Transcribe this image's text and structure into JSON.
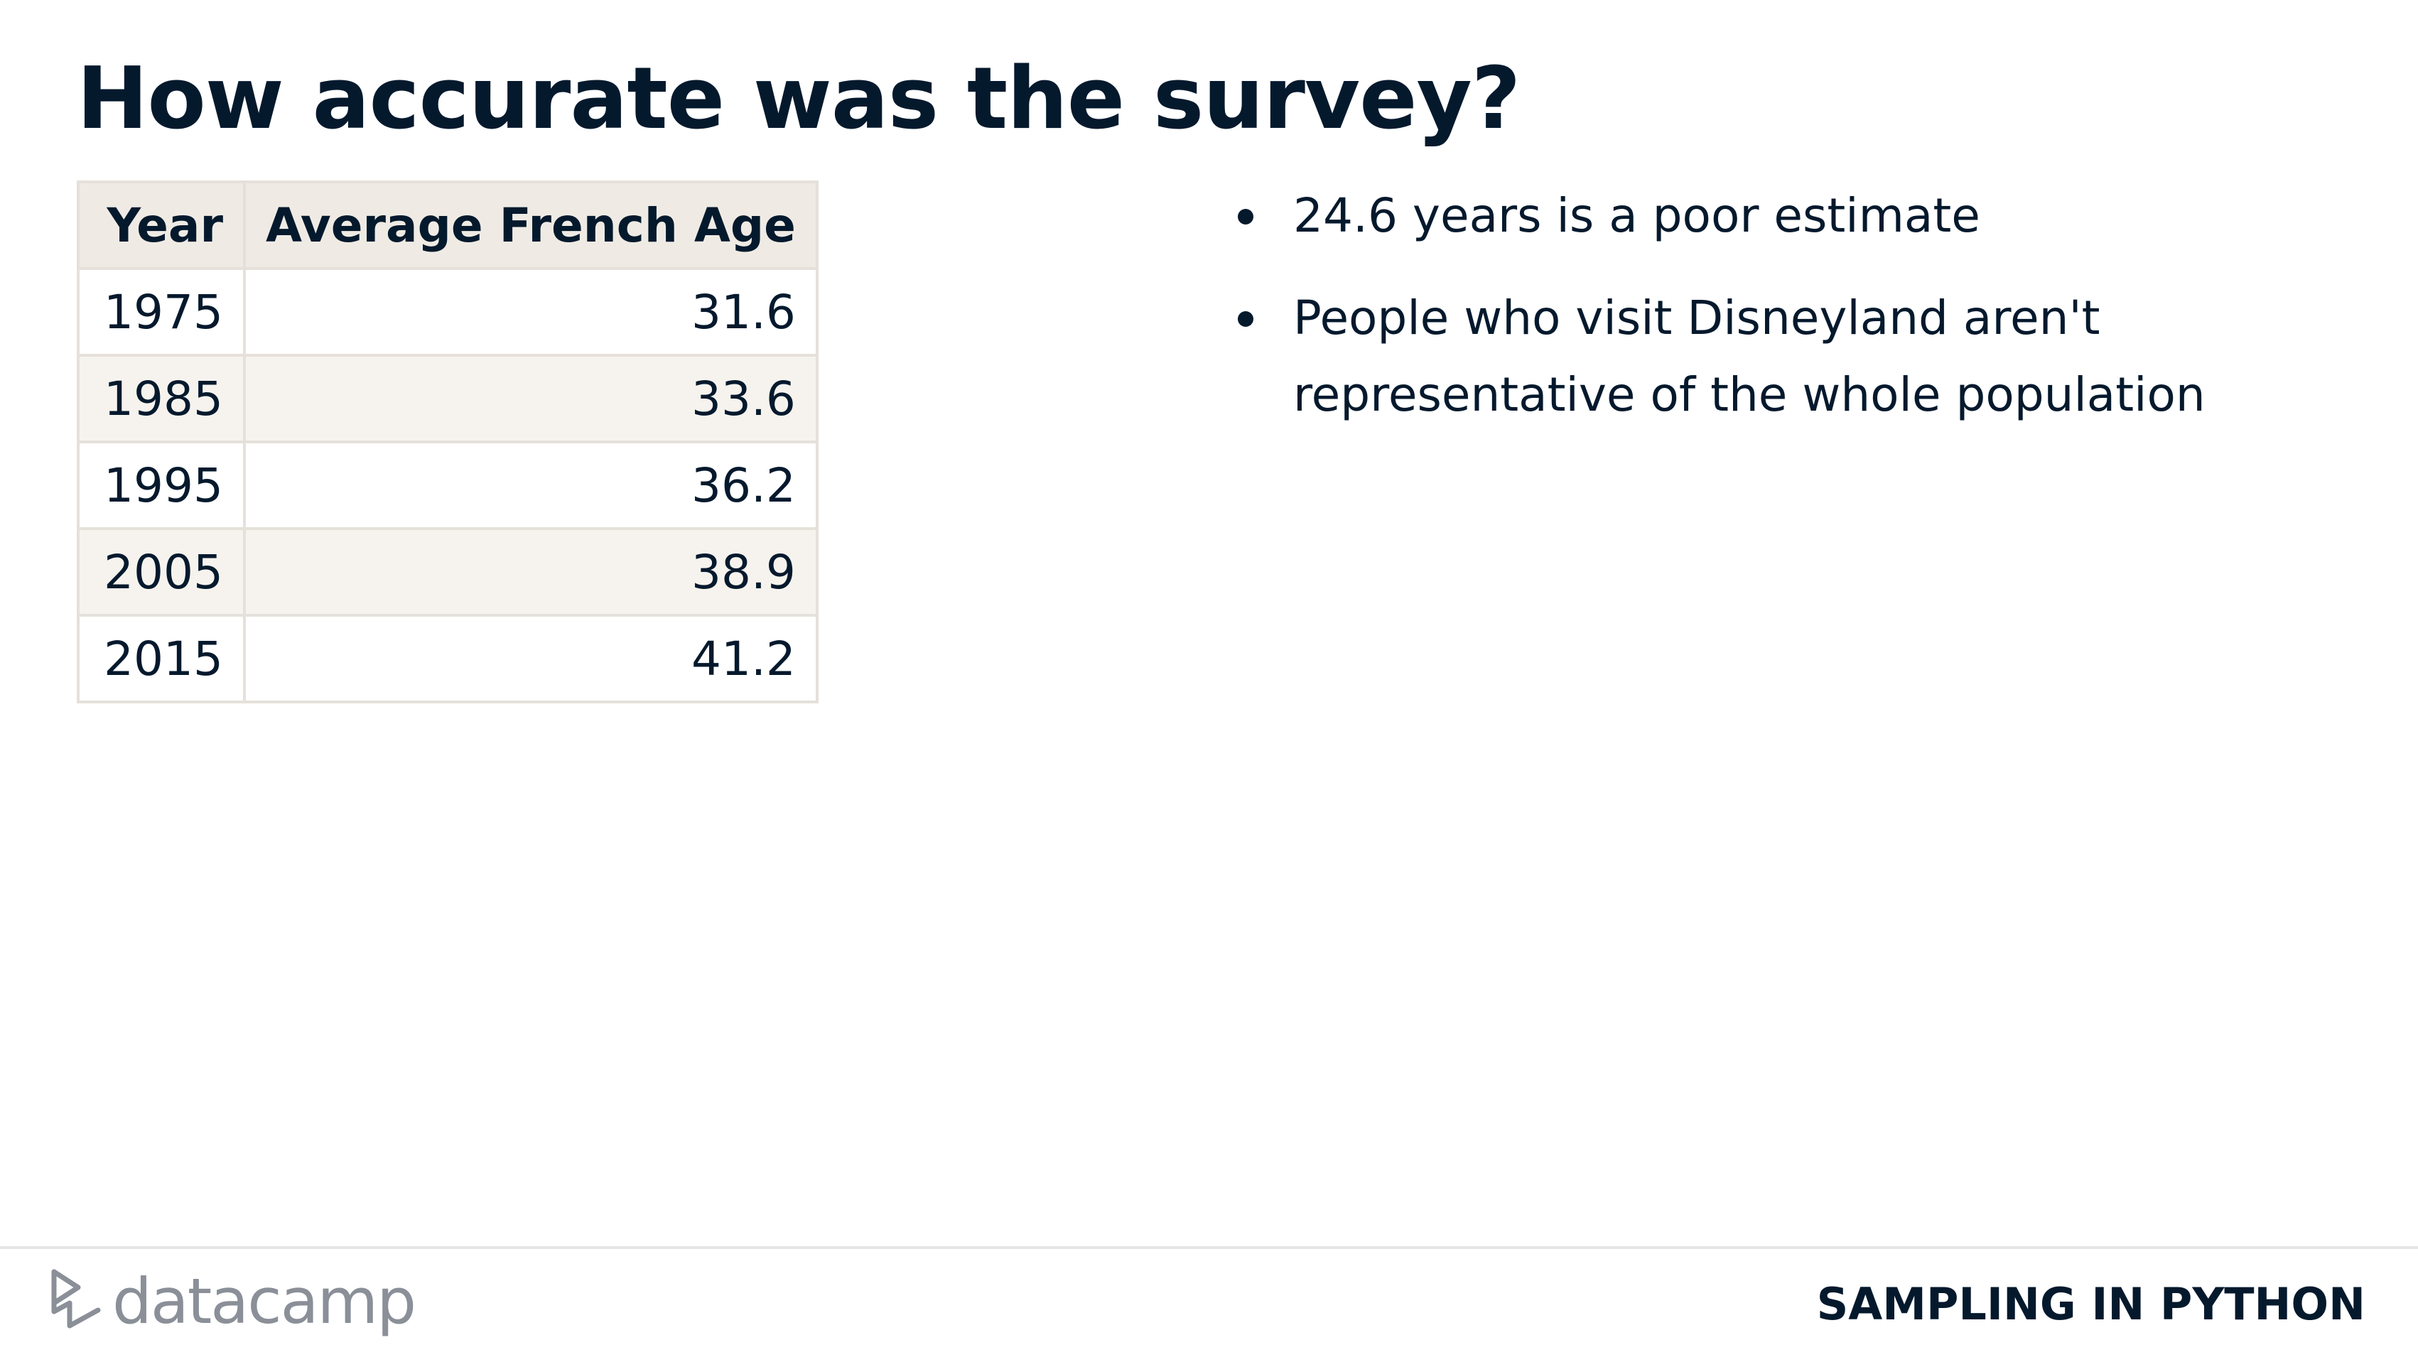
{
  "slide": {
    "title": "How accurate was the survey?"
  },
  "table": {
    "headers": {
      "year": "Year",
      "age": "Average French Age"
    },
    "rows": [
      {
        "year": "1975",
        "age": "31.6"
      },
      {
        "year": "1985",
        "age": "33.6"
      },
      {
        "year": "1995",
        "age": "36.2"
      },
      {
        "year": "2005",
        "age": "38.9"
      },
      {
        "year": "2015",
        "age": "41.2"
      }
    ]
  },
  "bullets": [
    {
      "text": "24.6 years is a poor estimate"
    },
    {
      "text": "People who visit Disneyland aren't representative of the whole population"
    }
  ],
  "footer": {
    "logo_text": "datacamp",
    "logo_icon": "datacamp-logo-icon",
    "course_name": "SAMPLING IN PYTHON"
  },
  "colors": {
    "text": "#05192d",
    "header_bg": "#efebe4",
    "stripe_bg": "#f6f3ee",
    "border": "#e5e1da",
    "logo": "#8a8f98"
  }
}
